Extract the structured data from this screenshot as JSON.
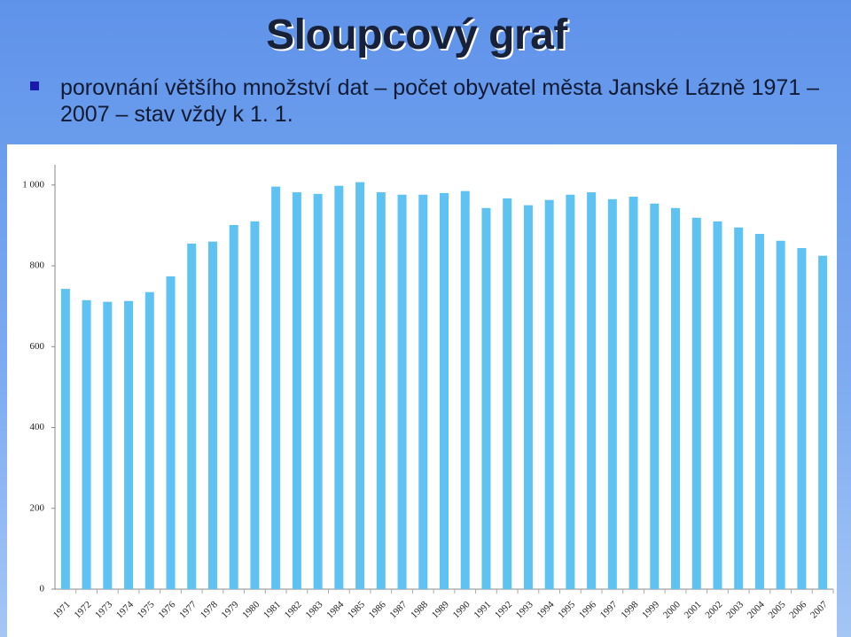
{
  "chart_data": {
    "type": "bar",
    "title": "Sloupcový graf",
    "subtitle": "porovnání většího množství dat – počet obyvatel města Janské Lázně 1971 – 2007 – stav vždy k 1. 1.",
    "categories": [
      "1971",
      "1972",
      "1973",
      "1974",
      "1975",
      "1976",
      "1977",
      "1978",
      "1979",
      "1980",
      "1981",
      "1982",
      "1983",
      "1984",
      "1985",
      "1986",
      "1987",
      "1988",
      "1989",
      "1990",
      "1991",
      "1992",
      "1993",
      "1994",
      "1995",
      "1996",
      "1997",
      "1998",
      "1999",
      "2000",
      "2001",
      "2002",
      "2003",
      "2004",
      "2005",
      "2006",
      "2007"
    ],
    "values": [
      743,
      715,
      711,
      713,
      735,
      774,
      855,
      860,
      901,
      910,
      996,
      982,
      978,
      998,
      1007,
      982,
      976,
      976,
      980,
      985,
      943,
      967,
      950,
      963,
      976,
      982,
      965,
      971,
      954,
      943,
      919,
      910,
      895,
      879,
      862,
      844,
      825
    ],
    "color": "#5ec3f2",
    "ylim": [
      0,
      1050
    ],
    "yticks": [
      0,
      200,
      400,
      600,
      800,
      {
        "value": 1000,
        "label": "1 000"
      }
    ],
    "grid": false
  }
}
